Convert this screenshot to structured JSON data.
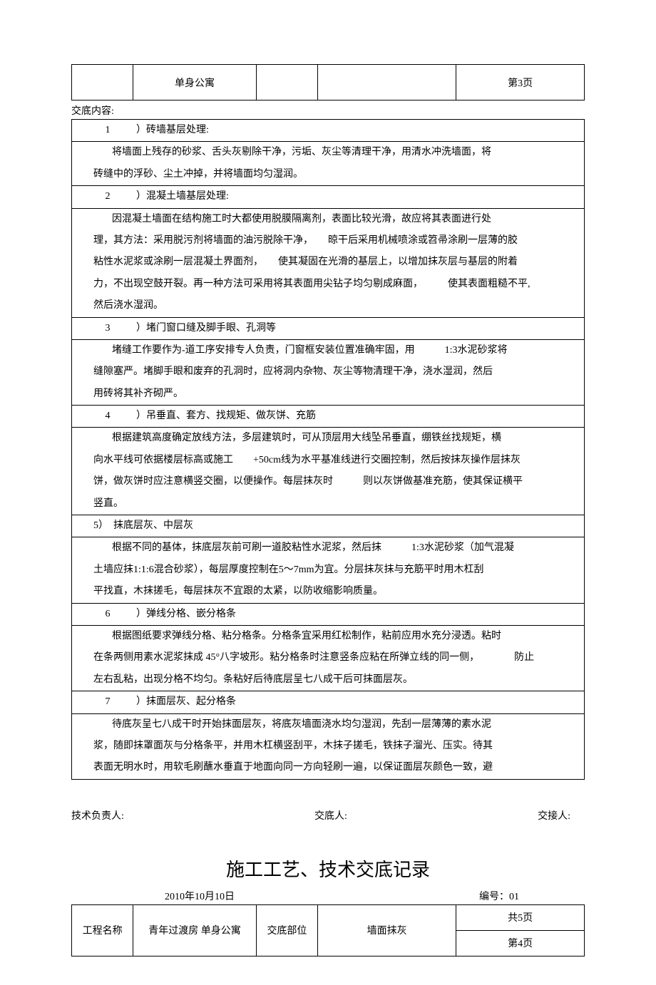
{
  "header_top": {
    "col2": "单身公寓",
    "col5": "第3页"
  },
  "content_label": "交底内容:",
  "sections": [
    {
      "num": "1",
      "title": "）砖墙基层处理:",
      "lines": [
        "将墙面上残存的砂浆、舌头灰剔除干净，污垢、灰尘等清理干净，用清水冲洗墙面，将",
        "砖缝中的浮砂、尘土冲掉，并将墙面均匀湿润。"
      ]
    },
    {
      "num": "2",
      "title": "）混凝土墙基层处理:",
      "lines": [
        "因混凝土墙面在结构施工时大都使用脱膜隔离剂，表面比较光滑，故应将其表面进行处",
        "理，其方法：采用脱污剂将墙面的油污脱除干净，　　晾干后采用机械喷涂或笤帚涂刷一层薄的胶",
        "粘性水泥浆或涂刷一层混凝土界面剂，　　使其凝固在光滑的基层上，以增加抹灰层与基层的附着",
        "力，不出现空鼓开裂。再一种方法可采用将其表面用尖钻子均匀剔成麻面，　　　使其表面粗糙不平,",
        "然后浇水湿润。"
      ]
    },
    {
      "num": "3",
      "title": "）堵门窗口缝及脚手眼、孔洞等",
      "lines": [
        "堵缝工作要作为-道工序安排专人负责，门窗框安装位置准确牢固，用　　　1:3水泥砂浆将",
        "缝隙塞严。堵脚手眼和废弃的孔洞时，应将洞内杂物、灰尘等物清理干净，浇水湿润，然后",
        "用砖将其补齐砌严。"
      ]
    },
    {
      "num": "4",
      "title": "）吊垂直、套方、找规矩、做灰饼、充筋",
      "lines": [
        "根据建筑高度确定放线方法，多层建筑时，可从顶层用大线坠吊垂直，绷铁丝找规矩，横",
        "向水平线可依据楼层标高或施工　　+50cm线为水平基准线进行交圈控制，然后按抹灰操作层抹灰",
        "饼，做灰饼时应注意横竖交圈，以便操作。每层抹灰时　　　则以灰饼做基准充筋，使其保证横平",
        "竖直。"
      ]
    },
    {
      "num": "5）",
      "title": "抹底层灰、中层灰",
      "style": "alt",
      "lines": [
        "根据不同的基体，抹底层灰前可刷一道胶粘性水泥浆，然后抹　　　1:3水泥砂浆（加气混凝",
        "土墙应抹1:1:6混合砂浆），每层厚度控制在5～7mm为宜。分层抹灰抹与充筋平时用木杠刮",
        "平找直，木抹搓毛，每层抹灰不宜跟的太紧，以防收缩影响质量。"
      ]
    },
    {
      "num": "6",
      "title": "）弹线分格、嵌分格条",
      "lines": [
        "根据图纸要求弹线分格、粘分格条。分格条宜采用红松制作，粘前应用水充分浸透。粘时",
        "在条两侧用素水泥浆抹成 45°八字坡形。粘分格条时注意竖条应粘在所弹立线的同一侧，　　　　防止",
        "左右乱粘，出现分格不均匀。条粘好后待底层呈七八成干后可抹面层灰。"
      ]
    },
    {
      "num": "7",
      "title": "）抹面层灰、起分格条",
      "lines": [
        "待底灰呈七八成干时开始抹面层灰，将底灰墙面浇水均匀湿润，先刮一层薄薄的素水泥",
        "浆，随即抹罩面灰与分格条平，并用木杠横竖刮平，木抹子搓毛，铁抹子溜光、压实。待其",
        "表面无明水时，用软毛刷蘸水垂直于地面向同一方向轻刷一遍，以保证面层灰颜色一致，避"
      ]
    }
  ],
  "signatures": {
    "tech_lead": "技术负责人:",
    "disclose": "交底人:",
    "receive": "交接人:"
  },
  "page2": {
    "title": "施工工艺、技术交底记录",
    "date": "2010年10月10日",
    "code": "编号：01",
    "table": {
      "r1c1": "工程名称",
      "r1c2": "青年过渡房 单身公寓",
      "r1c3": "交底部位",
      "r1c4": "墙面抹灰",
      "r1c5a": "共5页",
      "r1c5b": "第4页"
    }
  }
}
